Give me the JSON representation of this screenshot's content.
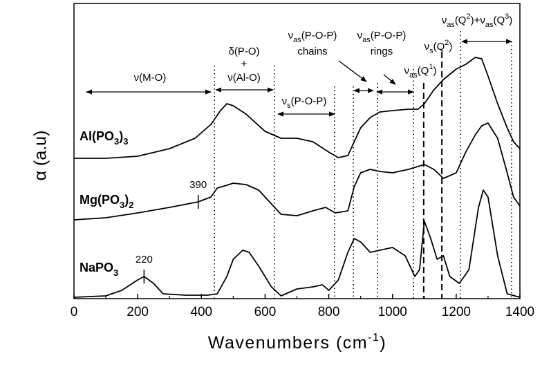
{
  "chart_data": {
    "type": "line",
    "xlabel": [
      {
        "text": "Wavenumbers (cm"
      },
      {
        "text": "-1",
        "shift": "super"
      },
      {
        "text": ")"
      }
    ],
    "ylabel": "α (a.u)",
    "xlim": [
      0,
      1400
    ],
    "xticks": [
      0,
      200,
      400,
      600,
      800,
      1000,
      1200,
      1400
    ],
    "ylim": [
      0,
      427
    ],
    "series": [
      {
        "label": [
          {
            "text": "Al(PO"
          },
          {
            "text": "3",
            "shift": "sub"
          },
          {
            "text": ")"
          },
          {
            "text": "3",
            "shift": "sub"
          }
        ],
        "color": "#000000",
        "x": [
          0,
          100,
          200,
          300,
          380,
          430,
          460,
          480,
          500,
          540,
          600,
          650,
          700,
          750,
          800,
          830,
          860,
          880,
          900,
          930,
          960,
          1000,
          1050,
          1080,
          1100,
          1130,
          1160,
          1200,
          1230,
          1260,
          1280,
          1300,
          1330,
          1360,
          1380,
          1400
        ],
        "values": [
          203,
          203,
          206,
          217,
          232,
          252,
          272,
          282,
          279,
          267,
          242,
          232,
          232,
          227,
          212,
          204,
          207,
          227,
          247,
          262,
          270,
          272,
          274,
          274,
          282,
          302,
          317,
          332,
          339,
          349,
          347,
          322,
          282,
          247,
          227,
          217
        ]
      },
      {
        "label": [
          {
            "text": "Mg(PO"
          },
          {
            "text": "3",
            "shift": "sub"
          },
          {
            "text": ")"
          },
          {
            "text": "2",
            "shift": "sub"
          }
        ],
        "color": "#000000",
        "x": [
          0,
          100,
          200,
          300,
          390,
          430,
          450,
          480,
          500,
          540,
          580,
          620,
          650,
          700,
          750,
          790,
          820,
          860,
          880,
          900,
          930,
          960,
          1000,
          1050,
          1100,
          1130,
          1160,
          1200,
          1230,
          1260,
          1280,
          1300,
          1330,
          1360,
          1380,
          1400
        ],
        "values": [
          114,
          117,
          124,
          132,
          140,
          147,
          160,
          164,
          167,
          165,
          157,
          137,
          122,
          120,
          127,
          132,
          124,
          127,
          162,
          182,
          187,
          184,
          182,
          187,
          194,
          187,
          174,
          182,
          212,
          237,
          250,
          254,
          232,
          182,
          147,
          134
        ]
      },
      {
        "label": [
          {
            "text": "NaPO"
          },
          {
            "text": "3",
            "shift": "sub"
          }
        ],
        "color": "#000000",
        "x": [
          0,
          100,
          150,
          200,
          220,
          250,
          280,
          350,
          420,
          450,
          480,
          500,
          530,
          550,
          580,
          620,
          650,
          700,
          750,
          780,
          800,
          830,
          860,
          880,
          900,
          930,
          960,
          1000,
          1040,
          1070,
          1085,
          1100,
          1120,
          1140,
          1160,
          1180,
          1210,
          1240,
          1270,
          1285,
          1300,
          1330,
          1360,
          1400
        ],
        "values": [
          2,
          4,
          12,
          27,
          32,
          22,
          7,
          5,
          5,
          7,
          32,
          57,
          70,
          67,
          47,
          17,
          4,
          14,
          17,
          20,
          12,
          27,
          67,
          87,
          82,
          67,
          70,
          74,
          62,
          32,
          42,
          112,
          87,
          57,
          62,
          32,
          22,
          42,
          132,
          157,
          147,
          62,
          7,
          2
        ]
      }
    ],
    "markers": [
      {
        "x": 390,
        "y": 140
      },
      {
        "x": 220,
        "y": 32
      }
    ],
    "vlines": [
      {
        "x": 441,
        "style": "dotted"
      },
      {
        "x": 629,
        "style": "dotted"
      },
      {
        "x": 818,
        "style": "dotted"
      },
      {
        "x": 877,
        "style": "dotted"
      },
      {
        "x": 953,
        "style": "dotted"
      },
      {
        "x": 1066,
        "style": "dotted"
      },
      {
        "x": 1098,
        "style": "dashed"
      },
      {
        "x": 1155,
        "style": "dashed"
      },
      {
        "x": 1213,
        "style": "dotted"
      },
      {
        "x": 1374,
        "style": "dotted"
      }
    ],
    "annotations": [
      [
        {
          "text": "ν(M-O)"
        }
      ],
      [
        {
          "text": "δ(P-O)"
        }
      ],
      [
        {
          "text": "+"
        }
      ],
      [
        {
          "text": "ν(Al-O)"
        }
      ],
      [
        {
          "text": "ν"
        },
        {
          "text": "s",
          "shift": "sub"
        },
        {
          "text": "(P-O-P)"
        }
      ],
      [
        {
          "text": "ν"
        },
        {
          "text": "as",
          "shift": "sub"
        },
        {
          "text": "(P-O-P)"
        }
      ],
      [
        {
          "text": "chains"
        }
      ],
      [
        {
          "text": "ν"
        },
        {
          "text": "as",
          "shift": "sub"
        },
        {
          "text": "(P-O-P)"
        }
      ],
      [
        {
          "text": "rings"
        }
      ],
      [
        {
          "text": "ν"
        },
        {
          "text": "as",
          "shift": "sub"
        },
        {
          "text": "(Q"
        },
        {
          "text": "1",
          "shift": "super"
        },
        {
          "text": ")"
        }
      ],
      [
        {
          "text": "ν"
        },
        {
          "text": "s",
          "shift": "sub"
        },
        {
          "text": "(Q"
        },
        {
          "text": "2",
          "shift": "super"
        },
        {
          "text": ")"
        }
      ],
      [
        {
          "text": "ν"
        },
        {
          "text": "as",
          "shift": "sub"
        },
        {
          "text": "(Q"
        },
        {
          "text": "2",
          "shift": "super"
        },
        {
          "text": ")+ν"
        },
        {
          "text": "as",
          "shift": "sub"
        },
        {
          "text": "(Q"
        },
        {
          "text": "3",
          "shift": "super"
        },
        {
          "text": ")"
        }
      ]
    ]
  }
}
